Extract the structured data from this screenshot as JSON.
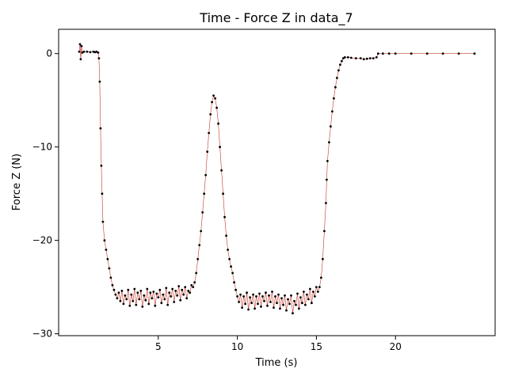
{
  "chart_data": {
    "type": "scatter",
    "title": "Time - Force Z in data_7",
    "xlabel": "Time (s)",
    "ylabel": "Force Z (N)",
    "xlim": [
      -1.3,
      26.3
    ],
    "ylim": [
      -30.2,
      2.6
    ],
    "x_ticks": [
      5,
      10,
      15,
      20
    ],
    "y_ticks": [
      0,
      -10,
      -20,
      -30
    ],
    "x_tick_labels": [
      "5",
      "10",
      "15",
      "20"
    ],
    "y_tick_labels": [
      "0",
      "−10",
      "−20",
      "−30"
    ],
    "grid": false,
    "legend": "none",
    "marker_color": "#000000",
    "line_color": "#c0392b",
    "series": [
      {
        "points": [
          [
            0.0,
            0.2
          ],
          [
            0.05,
            1.0
          ],
          [
            0.1,
            -0.6
          ],
          [
            0.15,
            0.8
          ],
          [
            0.2,
            0.1
          ],
          [
            0.3,
            0.2
          ],
          [
            0.5,
            0.2
          ],
          [
            0.7,
            0.15
          ],
          [
            0.9,
            0.2
          ],
          [
            1.0,
            0.15
          ],
          [
            1.1,
            0.2
          ],
          [
            1.2,
            0.1
          ],
          [
            1.25,
            -0.5
          ],
          [
            1.3,
            -3
          ],
          [
            1.35,
            -8
          ],
          [
            1.4,
            -12
          ],
          [
            1.45,
            -15
          ],
          [
            1.5,
            -18
          ],
          [
            1.6,
            -20
          ],
          [
            1.7,
            -21
          ],
          [
            1.8,
            -22
          ],
          [
            1.9,
            -23
          ],
          [
            2.0,
            -24
          ],
          [
            2.1,
            -24.8
          ],
          [
            2.2,
            -25.3
          ],
          [
            2.3,
            -25.8
          ],
          [
            2.4,
            -26.2
          ],
          [
            2.5,
            -25.6
          ],
          [
            2.6,
            -26.5
          ],
          [
            2.7,
            -25.4
          ],
          [
            2.8,
            -26.8
          ],
          [
            2.9,
            -25.9
          ],
          [
            3.0,
            -26.3
          ],
          [
            3.1,
            -25.3
          ],
          [
            3.2,
            -27.0
          ],
          [
            3.3,
            -25.8
          ],
          [
            3.4,
            -26.5
          ],
          [
            3.5,
            -25.2
          ],
          [
            3.6,
            -26.9
          ],
          [
            3.7,
            -25.6
          ],
          [
            3.8,
            -26.3
          ],
          [
            3.9,
            -25.4
          ],
          [
            4.0,
            -27.1
          ],
          [
            4.1,
            -25.9
          ],
          [
            4.2,
            -26.4
          ],
          [
            4.3,
            -25.2
          ],
          [
            4.4,
            -26.8
          ],
          [
            4.5,
            -25.6
          ],
          [
            4.6,
            -26.2
          ],
          [
            4.7,
            -25.5
          ],
          [
            4.8,
            -27.0
          ],
          [
            4.9,
            -25.7
          ],
          [
            5.0,
            -26.1
          ],
          [
            5.1,
            -25.3
          ],
          [
            5.2,
            -26.7
          ],
          [
            5.3,
            -25.8
          ],
          [
            5.4,
            -26.3
          ],
          [
            5.5,
            -25.1
          ],
          [
            5.6,
            -26.9
          ],
          [
            5.7,
            -25.6
          ],
          [
            5.8,
            -26.0
          ],
          [
            5.9,
            -25.2
          ],
          [
            6.0,
            -26.6
          ],
          [
            6.1,
            -25.4
          ],
          [
            6.2,
            -25.9
          ],
          [
            6.3,
            -24.9
          ],
          [
            6.4,
            -26.4
          ],
          [
            6.5,
            -25.3
          ],
          [
            6.6,
            -25.8
          ],
          [
            6.7,
            -25.0
          ],
          [
            6.8,
            -26.2
          ],
          [
            6.9,
            -25.4
          ],
          [
            7.0,
            -25.6
          ],
          [
            7.1,
            -24.8
          ],
          [
            7.2,
            -25.0
          ],
          [
            7.3,
            -24.5
          ],
          [
            7.4,
            -23.5
          ],
          [
            7.5,
            -22.0
          ],
          [
            7.6,
            -20.5
          ],
          [
            7.7,
            -19.0
          ],
          [
            7.8,
            -17.0
          ],
          [
            7.9,
            -15.0
          ],
          [
            8.0,
            -13.0
          ],
          [
            8.1,
            -10.5
          ],
          [
            8.2,
            -8.5
          ],
          [
            8.3,
            -6.5
          ],
          [
            8.4,
            -5.2
          ],
          [
            8.5,
            -4.5
          ],
          [
            8.6,
            -4.8
          ],
          [
            8.7,
            -5.8
          ],
          [
            8.8,
            -7.5
          ],
          [
            8.9,
            -10.0
          ],
          [
            9.0,
            -12.5
          ],
          [
            9.1,
            -15.0
          ],
          [
            9.2,
            -17.5
          ],
          [
            9.3,
            -19.5
          ],
          [
            9.4,
            -21.0
          ],
          [
            9.5,
            -22.0
          ],
          [
            9.6,
            -22.8
          ],
          [
            9.7,
            -23.5
          ],
          [
            9.8,
            -24.5
          ],
          [
            9.9,
            -25.3
          ],
          [
            10.0,
            -26.0
          ],
          [
            10.1,
            -26.6
          ],
          [
            10.2,
            -25.8
          ],
          [
            10.3,
            -27.2
          ],
          [
            10.4,
            -26.0
          ],
          [
            10.5,
            -26.8
          ],
          [
            10.6,
            -25.6
          ],
          [
            10.7,
            -27.4
          ],
          [
            10.8,
            -26.1
          ],
          [
            10.9,
            -26.7
          ],
          [
            11.0,
            -25.8
          ],
          [
            11.1,
            -27.3
          ],
          [
            11.2,
            -26.0
          ],
          [
            11.3,
            -26.8
          ],
          [
            11.4,
            -25.7
          ],
          [
            11.5,
            -27.1
          ],
          [
            11.6,
            -26.0
          ],
          [
            11.7,
            -26.5
          ],
          [
            11.8,
            -25.6
          ],
          [
            11.9,
            -27.0
          ],
          [
            12.0,
            -25.9
          ],
          [
            12.1,
            -26.6
          ],
          [
            12.2,
            -25.5
          ],
          [
            12.3,
            -27.2
          ],
          [
            12.4,
            -26.0
          ],
          [
            12.5,
            -26.7
          ],
          [
            12.6,
            -25.8
          ],
          [
            12.7,
            -27.3
          ],
          [
            12.8,
            -26.2
          ],
          [
            12.9,
            -26.9
          ],
          [
            13.0,
            -25.9
          ],
          [
            13.1,
            -27.5
          ],
          [
            13.2,
            -26.3
          ],
          [
            13.3,
            -26.8
          ],
          [
            13.4,
            -25.9
          ],
          [
            13.5,
            -27.8
          ],
          [
            13.6,
            -26.5
          ],
          [
            13.7,
            -26.9
          ],
          [
            13.8,
            -25.7
          ],
          [
            13.9,
            -27.3
          ],
          [
            14.0,
            -26.1
          ],
          [
            14.1,
            -26.7
          ],
          [
            14.2,
            -25.5
          ],
          [
            14.3,
            -26.9
          ],
          [
            14.4,
            -25.8
          ],
          [
            14.5,
            -26.3
          ],
          [
            14.6,
            -25.2
          ],
          [
            14.7,
            -26.7
          ],
          [
            14.8,
            -25.5
          ],
          [
            14.9,
            -26.0
          ],
          [
            15.0,
            -25.0
          ],
          [
            15.1,
            -25.5
          ],
          [
            15.2,
            -25.0
          ],
          [
            15.3,
            -24.0
          ],
          [
            15.4,
            -22.0
          ],
          [
            15.5,
            -19.0
          ],
          [
            15.6,
            -16.0
          ],
          [
            15.65,
            -13.5
          ],
          [
            15.7,
            -11.5
          ],
          [
            15.8,
            -9.5
          ],
          [
            15.9,
            -7.8
          ],
          [
            16.0,
            -6.2
          ],
          [
            16.1,
            -4.8
          ],
          [
            16.2,
            -3.6
          ],
          [
            16.3,
            -2.6
          ],
          [
            16.4,
            -1.8
          ],
          [
            16.5,
            -1.2
          ],
          [
            16.6,
            -0.8
          ],
          [
            16.7,
            -0.5
          ],
          [
            16.8,
            -0.4
          ],
          [
            17.0,
            -0.4
          ],
          [
            17.2,
            -0.45
          ],
          [
            17.5,
            -0.5
          ],
          [
            17.8,
            -0.5
          ],
          [
            18.0,
            -0.6
          ],
          [
            18.2,
            -0.55
          ],
          [
            18.4,
            -0.5
          ],
          [
            18.6,
            -0.5
          ],
          [
            18.8,
            -0.4
          ],
          [
            18.9,
            0.0
          ],
          [
            19.2,
            0.0
          ],
          [
            19.6,
            0.0
          ],
          [
            20.0,
            0.0
          ],
          [
            21.0,
            0.0
          ],
          [
            22.0,
            0.0
          ],
          [
            23.0,
            0.0
          ],
          [
            24.0,
            0.0
          ],
          [
            25.0,
            0.0
          ]
        ]
      }
    ]
  }
}
